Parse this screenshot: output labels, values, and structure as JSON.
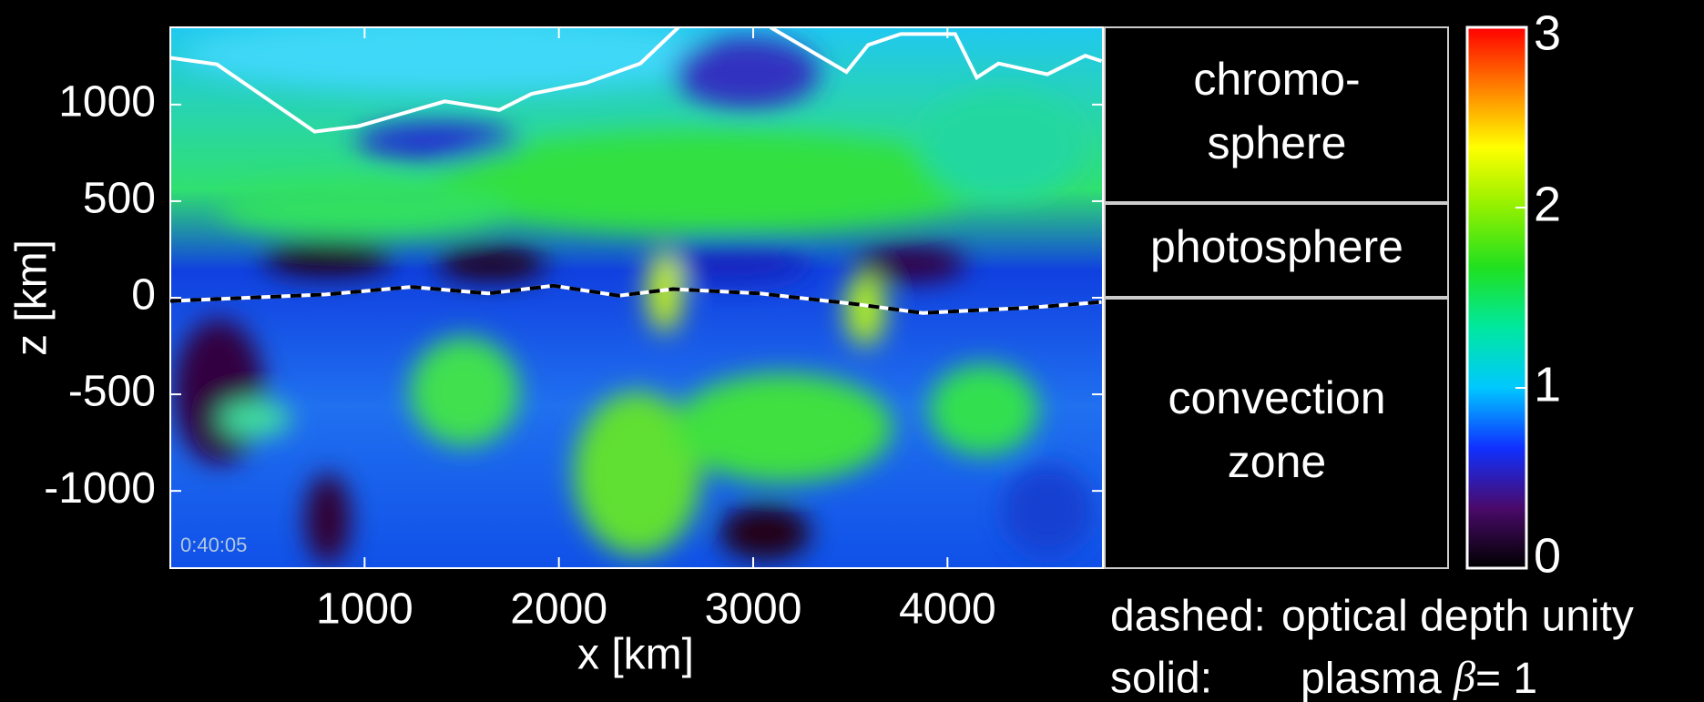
{
  "chart_data": {
    "type": "heatmap",
    "xlabel": "x [km]",
    "ylabel": "z [km]",
    "xlim": [
      0,
      4800
    ],
    "ylim": [
      -1400,
      1400
    ],
    "xticks": [
      1000,
      2000,
      3000,
      4000
    ],
    "yticks": [
      -1000,
      -500,
      0,
      500,
      1000
    ],
    "timestamp": "0:40:05",
    "lines": [
      {
        "style": "solid",
        "color": "#ffffff",
        "x": [
          0,
          240,
          743,
          967,
          1413,
          1693,
          1860,
          2140,
          2419,
          2615,
          null,
          3089,
          3480,
          3592,
          3760,
          4039,
          4151,
          4263,
          4514,
          4709,
          4793
        ],
        "y": [
          1242,
          1208,
          860,
          888,
          1017,
          972,
          1056,
          1112,
          1213,
          1400,
          null,
          1400,
          1169,
          1309,
          1365,
          1365,
          1140,
          1213,
          1157,
          1253,
          1225
        ]
      },
      {
        "style": "dashed",
        "color": "#000000",
        "x": [
          0,
          800,
          1240,
          1637,
          1972,
          2307,
          2587,
          3034,
          3536,
          3872,
          4430,
          4793
        ],
        "y": [
          -17,
          17,
          56,
          22,
          62,
          11,
          45,
          22,
          -34,
          -79,
          -51,
          -22
        ]
      }
    ],
    "regions": [
      {
        "lines": [
          "chromo-",
          "sphere"
        ]
      },
      {
        "lines": [
          "photosphere"
        ]
      },
      {
        "lines": [
          "convection",
          "zone"
        ]
      }
    ],
    "colorbar": {
      "lim": [
        0,
        3
      ],
      "ticks": [
        0,
        1,
        2,
        3
      ],
      "colors": [
        "#000000",
        "#4a0a6a",
        "#1030ff",
        "#00c8ff",
        "#00e8a0",
        "#20e020",
        "#90f000",
        "#ffff00",
        "#ff8000",
        "#ff0000"
      ]
    },
    "legend": [
      {
        "label": "dashed:",
        "text": "optical depth unity"
      },
      {
        "label": "solid:",
        "text": "plasma",
        "symbol": "β",
        "suffix": "= 1"
      }
    ]
  }
}
